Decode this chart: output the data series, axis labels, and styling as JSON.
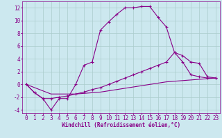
{
  "background_color": "#cce8ef",
  "grid_color": "#aacccc",
  "line_color": "#880088",
  "xlim": [
    -0.5,
    23.5
  ],
  "ylim": [
    -4.5,
    13
  ],
  "xlabel": "Windchill (Refroidissement éolien,°C)",
  "xlabel_fontsize": 5.5,
  "xticks": [
    0,
    1,
    2,
    3,
    4,
    5,
    6,
    7,
    8,
    9,
    10,
    11,
    12,
    13,
    14,
    15,
    16,
    17,
    18,
    19,
    20,
    21,
    22,
    23
  ],
  "yticks": [
    -4,
    -2,
    0,
    2,
    4,
    6,
    8,
    10,
    12
  ],
  "tick_fontsize": 5.5,
  "line1_x": [
    0,
    1,
    2,
    3,
    4,
    5,
    6,
    7,
    8,
    9,
    10,
    11,
    12,
    13,
    14,
    15,
    16,
    17,
    18,
    19,
    20,
    21,
    22,
    23
  ],
  "line1_y": [
    0.0,
    -1.3,
    -2.2,
    -4.0,
    -2.2,
    -2.2,
    0.0,
    3.0,
    3.5,
    8.5,
    9.8,
    11.0,
    12.0,
    12.0,
    12.2,
    12.2,
    10.5,
    9.0,
    5.0,
    3.5,
    1.5,
    1.2,
    1.0,
    1.0
  ],
  "line2_x": [
    0,
    1,
    2,
    3,
    4,
    5,
    6,
    7,
    8,
    9,
    10,
    11,
    12,
    13,
    14,
    15,
    16,
    17,
    18,
    19,
    20,
    21,
    22,
    23
  ],
  "line2_y": [
    0.0,
    -1.3,
    -2.2,
    -2.2,
    -2.0,
    -1.8,
    -1.5,
    -1.2,
    -0.8,
    -0.5,
    0.0,
    0.5,
    1.0,
    1.5,
    2.0,
    2.5,
    3.0,
    3.5,
    5.0,
    4.5,
    3.5,
    3.3,
    1.2,
    1.0
  ],
  "line3_x": [
    0,
    1,
    2,
    3,
    4,
    5,
    6,
    7,
    8,
    9,
    10,
    11,
    12,
    13,
    14,
    15,
    16,
    17,
    18,
    19,
    20,
    21,
    22,
    23
  ],
  "line3_y": [
    0.0,
    -0.5,
    -1.0,
    -1.5,
    -1.5,
    -1.5,
    -1.5,
    -1.4,
    -1.3,
    -1.2,
    -1.0,
    -0.8,
    -0.6,
    -0.4,
    -0.2,
    0.0,
    0.2,
    0.4,
    0.5,
    0.6,
    0.7,
    0.8,
    0.9,
    1.0
  ]
}
